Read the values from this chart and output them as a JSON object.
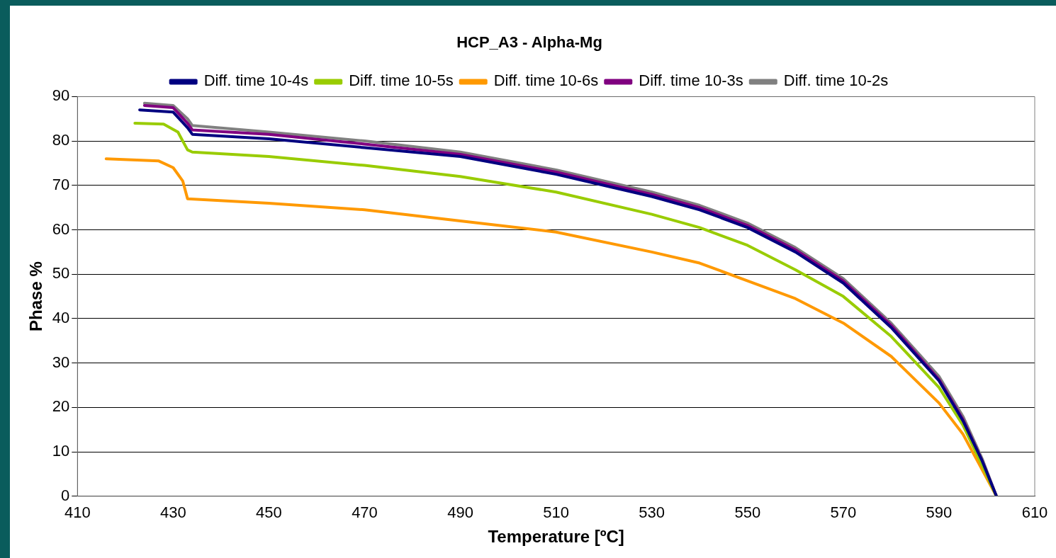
{
  "chart_data": {
    "type": "line",
    "title": "HCP_A3 - Alpha-Mg",
    "xlabel": "Temperature [ºC]",
    "ylabel": "Phase %",
    "xlim": [
      410,
      610
    ],
    "xticks": [
      410,
      430,
      450,
      470,
      490,
      510,
      530,
      550,
      570,
      590,
      610
    ],
    "ylim": [
      0,
      90
    ],
    "yticks": [
      0,
      10,
      20,
      30,
      40,
      50,
      60,
      70,
      80,
      90
    ],
    "grid": "y",
    "legend": "top",
    "marker": "none",
    "line_style": "solid",
    "series": [
      {
        "name": "Diff. time 10-4s",
        "color": "#000080",
        "x": [
          423,
          430,
          433,
          434,
          450,
          470,
          490,
          510,
          530,
          540,
          550,
          560,
          570,
          580,
          590,
          595,
          599,
          602
        ],
        "values": [
          87,
          86.5,
          83,
          81.5,
          80.5,
          78.5,
          76.5,
          72.5,
          67.5,
          64.5,
          60.5,
          55,
          48,
          38,
          26,
          17,
          8,
          0
        ]
      },
      {
        "name": "Diff. time 10-5s",
        "color": "#99cc00",
        "x": [
          422,
          428,
          431,
          433,
          434,
          450,
          470,
          490,
          510,
          530,
          540,
          550,
          560,
          570,
          580,
          590,
          595,
          599,
          602
        ],
        "values": [
          84,
          83.8,
          82,
          78,
          77.5,
          76.5,
          74.5,
          72,
          68.5,
          63.5,
          60.5,
          56.5,
          51,
          45,
          36,
          24.5,
          16,
          7,
          0
        ]
      },
      {
        "name": "Diff. time 10-6s",
        "color": "#ff9900",
        "x": [
          416,
          427,
          430,
          432,
          433,
          450,
          470,
          490,
          510,
          530,
          540,
          550,
          560,
          570,
          580,
          590,
          595,
          598,
          602
        ],
        "values": [
          76,
          75.5,
          74,
          71,
          67,
          66,
          64.5,
          62,
          59.5,
          55,
          52.5,
          48.5,
          44.5,
          39,
          31.5,
          21,
          14,
          8,
          0
        ]
      },
      {
        "name": "Diff. time 10-3s",
        "color": "#800080",
        "x": [
          424,
          430,
          433,
          434,
          450,
          470,
          490,
          510,
          530,
          540,
          550,
          560,
          570,
          580,
          590,
          595,
          599,
          602
        ],
        "values": [
          88,
          87.5,
          84,
          82.5,
          81.5,
          79.3,
          77,
          73,
          68,
          65,
          61,
          55.5,
          48.5,
          38.5,
          26.3,
          17.3,
          8,
          0
        ]
      },
      {
        "name": "Diff. time 10-2s",
        "color": "#808080",
        "x": [
          424,
          430,
          433,
          434,
          450,
          470,
          490,
          510,
          530,
          540,
          550,
          560,
          570,
          580,
          590,
          595,
          599,
          602
        ],
        "values": [
          88.5,
          88,
          85,
          83.5,
          82,
          80,
          77.5,
          73.5,
          68.5,
          65.5,
          61.5,
          56,
          49,
          39,
          27,
          18,
          8.5,
          0
        ]
      }
    ]
  }
}
